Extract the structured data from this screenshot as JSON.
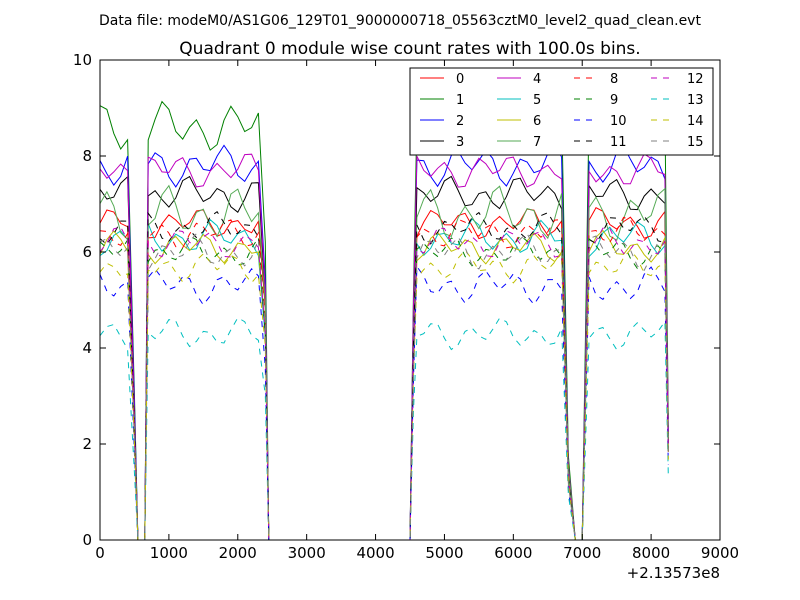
{
  "suptitle": "Data file: modeM0/AS1G06_129T01_9000000718_05563cztM0_level2_quad_clean.evt",
  "chart_data": {
    "type": "line",
    "title": "Quadrant 0 module wise count rates with 100.0s bins.",
    "xlabel": "",
    "ylabel": "",
    "xlim": [
      0,
      9000
    ],
    "ylim": [
      0,
      10
    ],
    "x_offset_label": "+2.13573e8",
    "xticks": [
      "0",
      "1000",
      "2000",
      "3000",
      "4000",
      "5000",
      "6000",
      "7000",
      "8000",
      "9000"
    ],
    "yticks": [
      "0",
      "2",
      "4",
      "6",
      "8",
      "10"
    ],
    "grid": false,
    "legend": {
      "placement": "top-right",
      "columns": 4
    },
    "series": [
      {
        "name": "0",
        "color": "#ff0000",
        "dash": false,
        "base": 6.6,
        "amp": 0.35
      },
      {
        "name": "1",
        "color": "#008000",
        "dash": false,
        "base": 8.6,
        "amp": 0.55
      },
      {
        "name": "2",
        "color": "#0000ff",
        "dash": false,
        "base": 7.8,
        "amp": 0.45
      },
      {
        "name": "3",
        "color": "#000000",
        "dash": false,
        "base": 7.2,
        "amp": 0.4
      },
      {
        "name": "4",
        "color": "#bf00bf",
        "dash": false,
        "base": 7.7,
        "amp": 0.4
      },
      {
        "name": "5",
        "color": "#00bfbf",
        "dash": false,
        "base": 6.3,
        "amp": 0.4
      },
      {
        "name": "6",
        "color": "#bfbf00",
        "dash": false,
        "base": 6.1,
        "amp": 0.35
      },
      {
        "name": "7",
        "color": "#55aa55",
        "dash": false,
        "base": 6.8,
        "amp": 0.6
      },
      {
        "name": "8",
        "color": "#ff0000",
        "dash": true,
        "base": 6.4,
        "amp": 0.35
      },
      {
        "name": "9",
        "color": "#008000",
        "dash": true,
        "base": 6.0,
        "amp": 0.35
      },
      {
        "name": "10",
        "color": "#0000ff",
        "dash": true,
        "base": 5.3,
        "amp": 0.4
      },
      {
        "name": "11",
        "color": "#000000",
        "dash": true,
        "base": 6.5,
        "amp": 0.35
      },
      {
        "name": "12",
        "color": "#bf00bf",
        "dash": true,
        "base": 6.2,
        "amp": 0.35
      },
      {
        "name": "13",
        "color": "#00bfbf",
        "dash": true,
        "base": 4.3,
        "amp": 0.35
      },
      {
        "name": "14",
        "color": "#bfbf00",
        "dash": true,
        "base": 5.7,
        "amp": 0.35
      },
      {
        "name": "15",
        "color": "#808080",
        "dash": true,
        "base": 6.0,
        "amp": 0.4
      }
    ],
    "x": [
      0,
      100,
      200,
      300,
      400,
      500,
      550,
      650,
      700,
      800,
      900,
      1000,
      1100,
      1200,
      1300,
      1400,
      1500,
      1600,
      1700,
      1800,
      1900,
      2000,
      2100,
      2200,
      2300,
      2400,
      2450,
      2500,
      3000,
      3500,
      4000,
      4500,
      4550,
      4600,
      4700,
      4800,
      4900,
      5000,
      5100,
      5200,
      5300,
      5400,
      5500,
      5600,
      5700,
      5800,
      5900,
      6000,
      6100,
      6200,
      6300,
      6400,
      6500,
      6600,
      6700,
      6800,
      6900,
      7000,
      7100,
      7200,
      7300,
      7400,
      7500,
      7600,
      7700,
      7800,
      7900,
      8000,
      8100,
      8200,
      8250
    ],
    "mask": [
      1,
      1,
      1,
      1,
      1,
      0.35,
      0,
      0,
      1,
      1,
      1,
      1,
      1,
      1,
      1,
      1,
      1,
      1,
      1,
      1,
      1,
      1,
      1,
      1,
      1,
      0.7,
      0,
      0,
      0,
      0,
      0,
      0,
      0.6,
      1,
      1,
      1,
      1,
      1,
      1,
      1,
      1,
      1,
      1,
      1,
      1,
      1,
      1,
      1,
      1,
      1,
      1,
      1,
      1,
      1,
      1,
      0.2,
      0,
      0,
      1,
      1,
      1,
      1,
      1,
      1,
      1,
      1,
      1,
      1,
      1,
      1,
      0.3
    ]
  }
}
